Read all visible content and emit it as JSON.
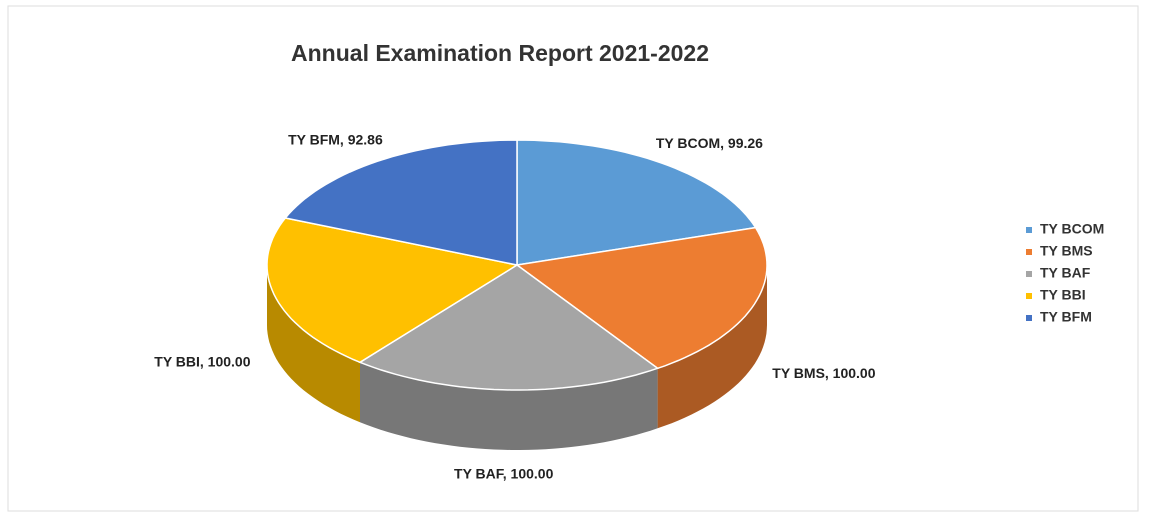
{
  "chart_data": {
    "type": "pie",
    "title": "Annual Examination Report  2021-2022",
    "categories": [
      "TY BCOM",
      "TY BMS",
      "TY BAF",
      "TY BBI",
      "TY BFM"
    ],
    "values": [
      99.26,
      100.0,
      100.0,
      100.0,
      92.86
    ],
    "value_labels": [
      "TY BCOM, 99.26",
      "TY BMS, 100.00",
      "TY BAF, 100.00",
      "TY BBI, 100.00",
      "TY BFM, 92.86"
    ],
    "colors": [
      "#5b9bd5",
      "#ed7d31",
      "#a5a5a5",
      "#ffc000",
      "#4472c4"
    ],
    "legend": "right"
  }
}
